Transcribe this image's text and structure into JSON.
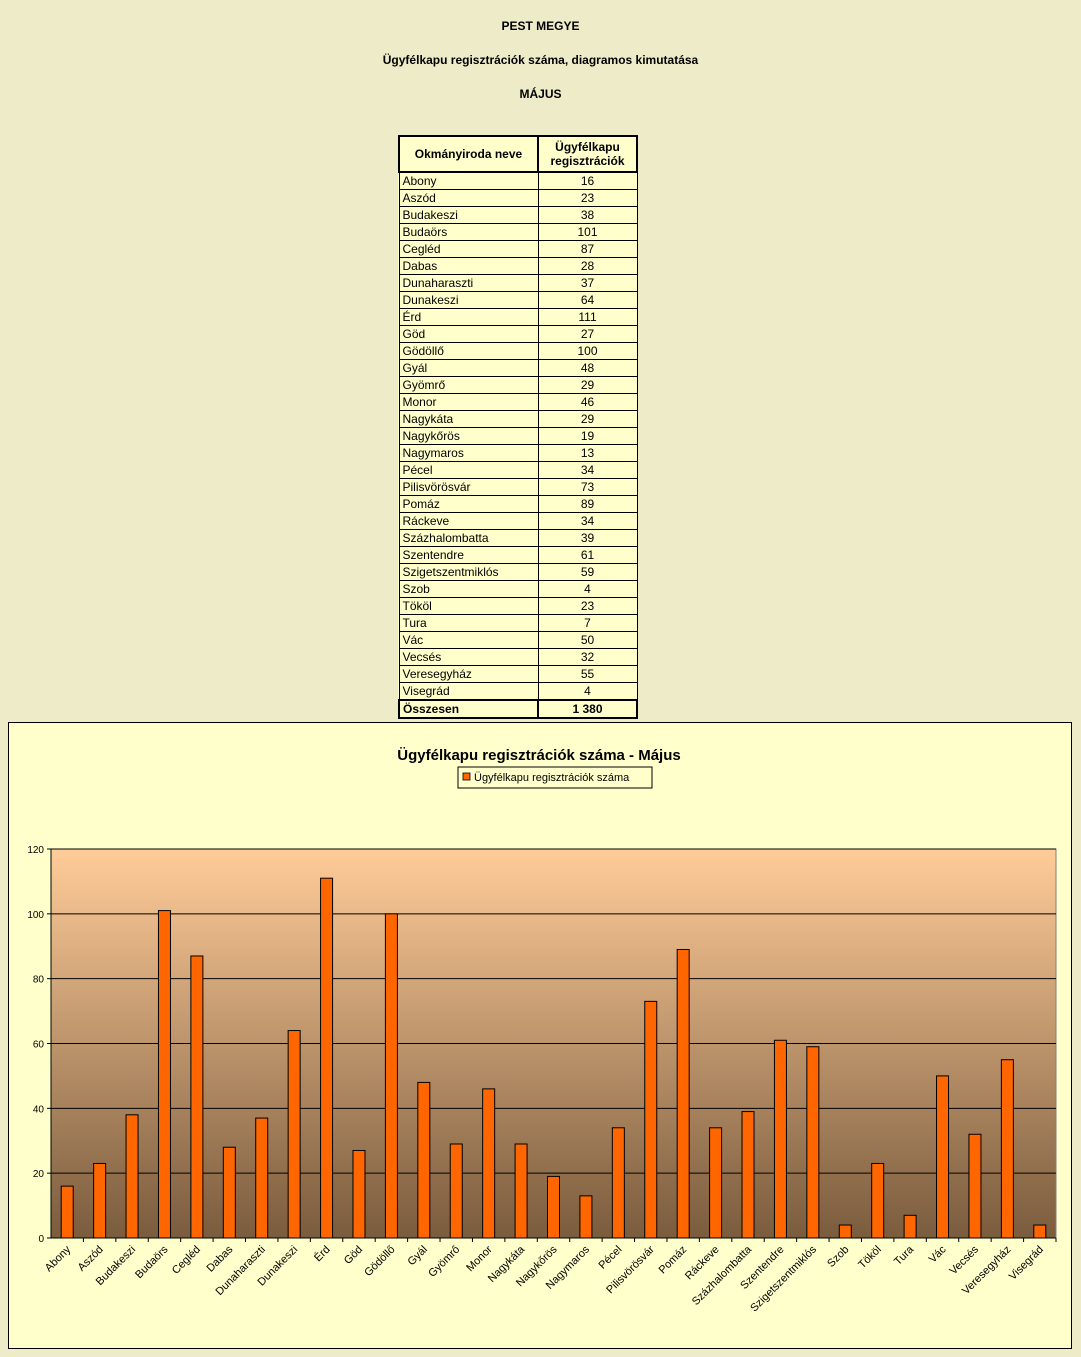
{
  "header": {
    "county": "PEST MEGYE",
    "subtitle": "Ügyfélkapu regisztrációk száma, diagramos kimutatása",
    "month": "MÁJUS"
  },
  "table": {
    "col_name": "Okmányiroda neve",
    "col_value_line1": "Ügyfélkapu",
    "col_value_line2": "regisztrációk",
    "total_label": "Összesen",
    "total_value": "1 380"
  },
  "chart_data": {
    "type": "bar",
    "title": "Ügyfélkapu regisztrációk száma - Május",
    "legend_position": "top",
    "xlabel": "",
    "ylabel": "",
    "ylim": [
      0,
      120
    ],
    "yticks": [
      0,
      20,
      40,
      60,
      80,
      100,
      120
    ],
    "grid": true,
    "categories": [
      "Abony",
      "Aszód",
      "Budakeszi",
      "Budaörs",
      "Cegléd",
      "Dabas",
      "Dunaharaszti",
      "Dunakeszi",
      "Érd",
      "Göd",
      "Gödöllő",
      "Gyál",
      "Gyömrő",
      "Monor",
      "Nagykáta",
      "Nagykőrös",
      "Nagymaros",
      "Pécel",
      "Pilisvörösvár",
      "Pomáz",
      "Ráckeve",
      "Százhalombatta",
      "Szentendre",
      "Szigetszentmiklós",
      "Szob",
      "Tököl",
      "Tura",
      "Vác",
      "Vecsés",
      "Veresegyház",
      "Visegrád"
    ],
    "series": [
      {
        "name": "Ügyfélkapu regisztrációk száma",
        "color": "#FF6600",
        "values": [
          16,
          23,
          38,
          101,
          87,
          28,
          37,
          64,
          111,
          27,
          100,
          48,
          29,
          46,
          29,
          19,
          13,
          34,
          73,
          89,
          34,
          39,
          61,
          59,
          4,
          23,
          7,
          50,
          32,
          55,
          4
        ]
      }
    ]
  }
}
